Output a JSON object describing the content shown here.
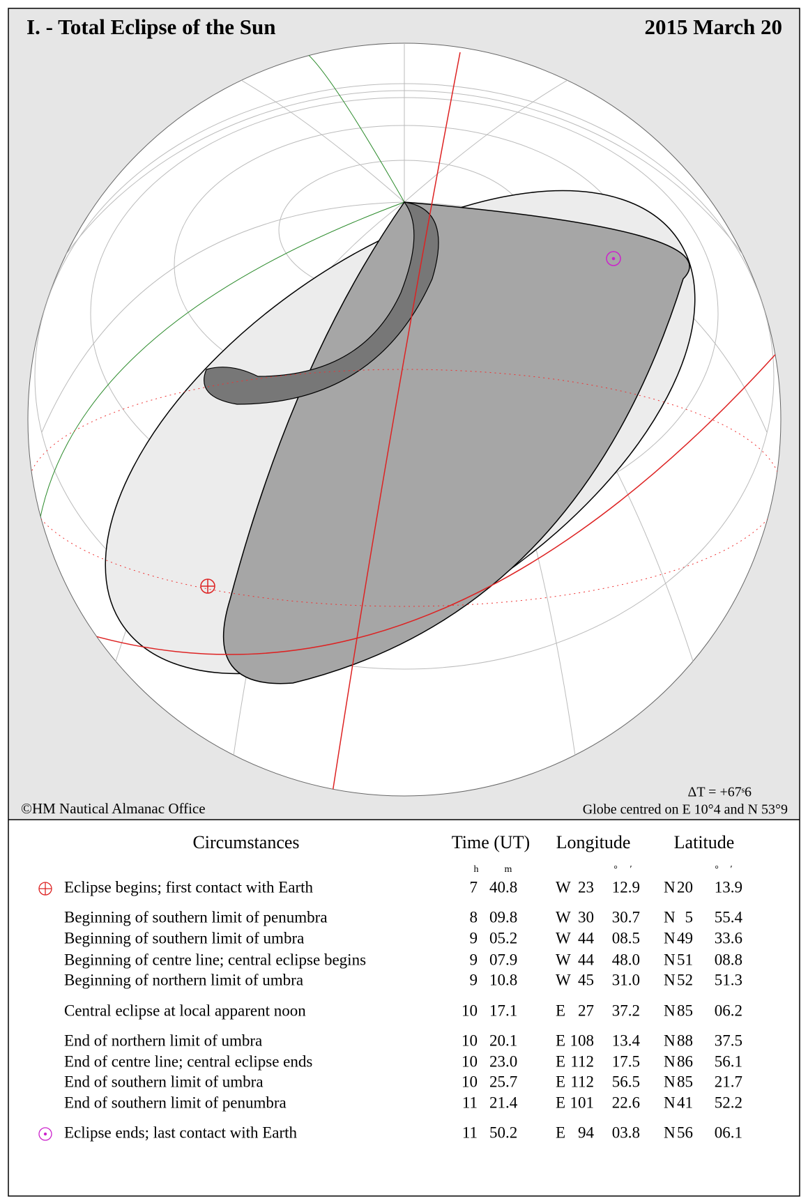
{
  "header": {
    "title": "I. - Total Eclipse of the Sun",
    "date": "2015 March 20"
  },
  "map": {
    "credit": "©HM Nautical Almanac Office",
    "delta_t": "ΔT = +67ˢ6",
    "globe_centre": "Globe centred on E 10°4  and N 53°9"
  },
  "table": {
    "headers": [
      "Circumstances",
      "Time (UT)",
      "Longitude",
      "Latitude"
    ],
    "units": [
      "h",
      "m",
      "°",
      "′",
      "°",
      "′"
    ],
    "rows": [
      [
        "Eclipse begins; first contact with Earth",
        "7",
        "40.8",
        "W",
        "23",
        "12.9",
        "N",
        "20",
        "13.9"
      ],
      [
        "Beginning of southern limit of penumbra",
        "8",
        "09.8",
        "W",
        "30",
        "30.7",
        "N",
        "5",
        "55.4"
      ],
      [
        "Beginning of southern limit of umbra",
        "9",
        "05.2",
        "W",
        "44",
        "08.5",
        "N",
        "49",
        "33.6"
      ],
      [
        "Beginning of centre line; central eclipse begins",
        "9",
        "07.9",
        "W",
        "44",
        "48.0",
        "N",
        "51",
        "08.8"
      ],
      [
        "Beginning of northern limit of umbra",
        "9",
        "10.8",
        "W",
        "45",
        "31.0",
        "N",
        "52",
        "51.3"
      ],
      [
        "Central eclipse at local apparent noon",
        "10",
        "17.1",
        "E",
        "27",
        "37.2",
        "N",
        "85",
        "06.2"
      ],
      [
        "End of northern limit of umbra",
        "10",
        "20.1",
        "E",
        "108",
        "13.4",
        "N",
        "88",
        "37.5"
      ],
      [
        "End of centre line; central eclipse ends",
        "10",
        "23.0",
        "E",
        "112",
        "17.5",
        "N",
        "86",
        "56.1"
      ],
      [
        "End of southern limit of umbra",
        "10",
        "25.7",
        "E",
        "112",
        "56.5",
        "N",
        "85",
        "21.7"
      ],
      [
        "End of southern limit of penumbra",
        "11",
        "21.4",
        "E",
        "101",
        "22.6",
        "N",
        "41",
        "52.2"
      ],
      [
        "Eclipse ends; last contact with Earth",
        "11",
        "50.2",
        "E",
        "94",
        "03.8",
        "N",
        "56",
        "06.1"
      ]
    ]
  }
}
